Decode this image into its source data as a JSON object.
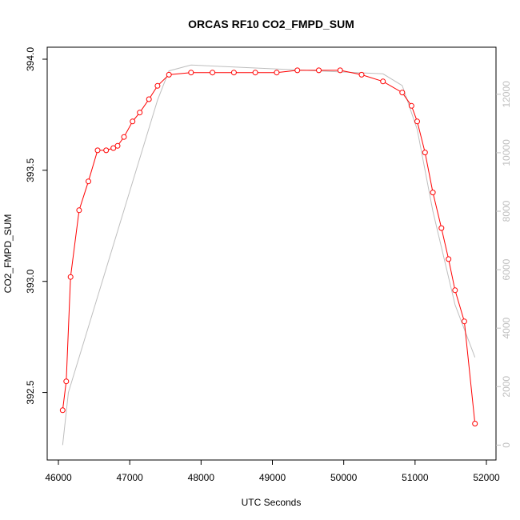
{
  "chart_data": {
    "type": "line",
    "title": "ORCAS RF10 CO2_FMPD_SUM",
    "xlabel": "UTC Seconds",
    "ylabel": "CO2_FMPD_SUM",
    "xlim": [
      46000,
      52000
    ],
    "ylim": [
      392.25,
      394.0
    ],
    "y2lim": [
      -100,
      13200
    ],
    "x_ticks": [
      46000,
      47000,
      48000,
      49000,
      50000,
      51000,
      52000
    ],
    "y_ticks": [
      392.5,
      393.0,
      393.5,
      394.0
    ],
    "y_tick_labels": [
      "392.5",
      "393.0",
      "393.5",
      "394.0"
    ],
    "y2_ticks": [
      0,
      2000,
      4000,
      6000,
      8000,
      10000,
      12000
    ],
    "grid": false,
    "legend": "none",
    "series": [
      {
        "axis": "left",
        "color": "#ff0000",
        "marker": "open-circle",
        "x": [
          46060,
          46110,
          46170,
          46290,
          46420,
          46550,
          46670,
          46770,
          46830,
          46920,
          47040,
          47140,
          47270,
          47390,
          47550,
          47860,
          48160,
          48460,
          48760,
          49060,
          49350,
          49650,
          49950,
          50250,
          50550,
          50820,
          50950,
          51030,
          51140,
          51250,
          51370,
          51470,
          51560,
          51690,
          51840
        ],
        "y": [
          392.42,
          392.55,
          393.02,
          393.32,
          393.45,
          393.59,
          393.59,
          393.6,
          393.61,
          393.65,
          393.72,
          393.76,
          393.82,
          393.88,
          393.93,
          393.94,
          393.94,
          393.94,
          393.94,
          393.94,
          393.95,
          393.95,
          393.95,
          393.93,
          393.9,
          393.85,
          393.79,
          393.72,
          393.58,
          393.4,
          393.24,
          393.1,
          392.96,
          392.82,
          392.36
        ]
      },
      {
        "axis": "right",
        "color": "#bebebe",
        "marker": "none",
        "x": [
          46060,
          46140,
          47390,
          47550,
          47860,
          50550,
          50820,
          51030,
          51250,
          51560,
          51840
        ],
        "y": [
          0,
          1800,
          11800,
          12800,
          13000,
          12700,
          12300,
          10800,
          8000,
          4800,
          3000
        ]
      }
    ]
  }
}
